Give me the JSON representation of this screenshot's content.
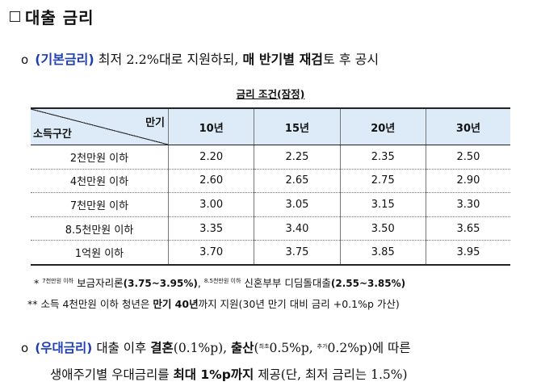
{
  "title": "대출 금리",
  "basic": {
    "label": "(기본금리)",
    "text1": " 최저 2.2%대로 지원하되, ",
    "bold": "매 반기별 재검",
    "text2": "토 후 공시"
  },
  "table": {
    "caption": "금리 조건(잠정)",
    "corner_top": "만기",
    "corner_bottom": "소득구간",
    "columns": [
      "10년",
      "15년",
      "20년",
      "30년"
    ],
    "rows": [
      {
        "label": "2천만원 이하",
        "values": [
          "2.20",
          "2.25",
          "2.35",
          "2.50"
        ]
      },
      {
        "label": "4천만원 이하",
        "values": [
          "2.60",
          "2.65",
          "2.75",
          "2.90"
        ]
      },
      {
        "label": "7천만원 이하",
        "values": [
          "3.00",
          "3.05",
          "3.15",
          "3.30"
        ]
      },
      {
        "label": "8.5천만원 이하",
        "values": [
          "3.35",
          "3.40",
          "3.50",
          "3.65"
        ]
      },
      {
        "label": "1억원 이하",
        "values": [
          "3.70",
          "3.75",
          "3.85",
          "3.95"
        ]
      }
    ]
  },
  "note1": {
    "star": "*",
    "tiny1": "7천만원 이하",
    "text1": " 보금자리론",
    "range1": "(3.75~3.95%)",
    "comma": ",",
    "tiny2": "8.5천만원 이하",
    "text2": " 신혼부부 디딤돌대출",
    "range2": "(2.55~3.85%)"
  },
  "note2": {
    "stars": "**",
    "text1": " 소득 4천만원 이하 청년은 ",
    "bold": "만기 40년",
    "text2": "까지 지원(30년 만기 대비 금리 +0.1%p 가산)"
  },
  "pref": {
    "label": "(우대금리)",
    "t1": " 대출 이후 ",
    "marriage": "결혼",
    "t2": "(0.1%p), ",
    "birth": "출산",
    "t3": "(",
    "sup1": "최초",
    "t4": "0.5%p, ",
    "sup2": "추가",
    "t5": "0.2%p)에 따른",
    "l2a": "생애주기별 우대금리를 ",
    "l2b": "최대 1%p까지",
    "l2c": " 제공(단, 최저 금리는 1.5%)"
  }
}
